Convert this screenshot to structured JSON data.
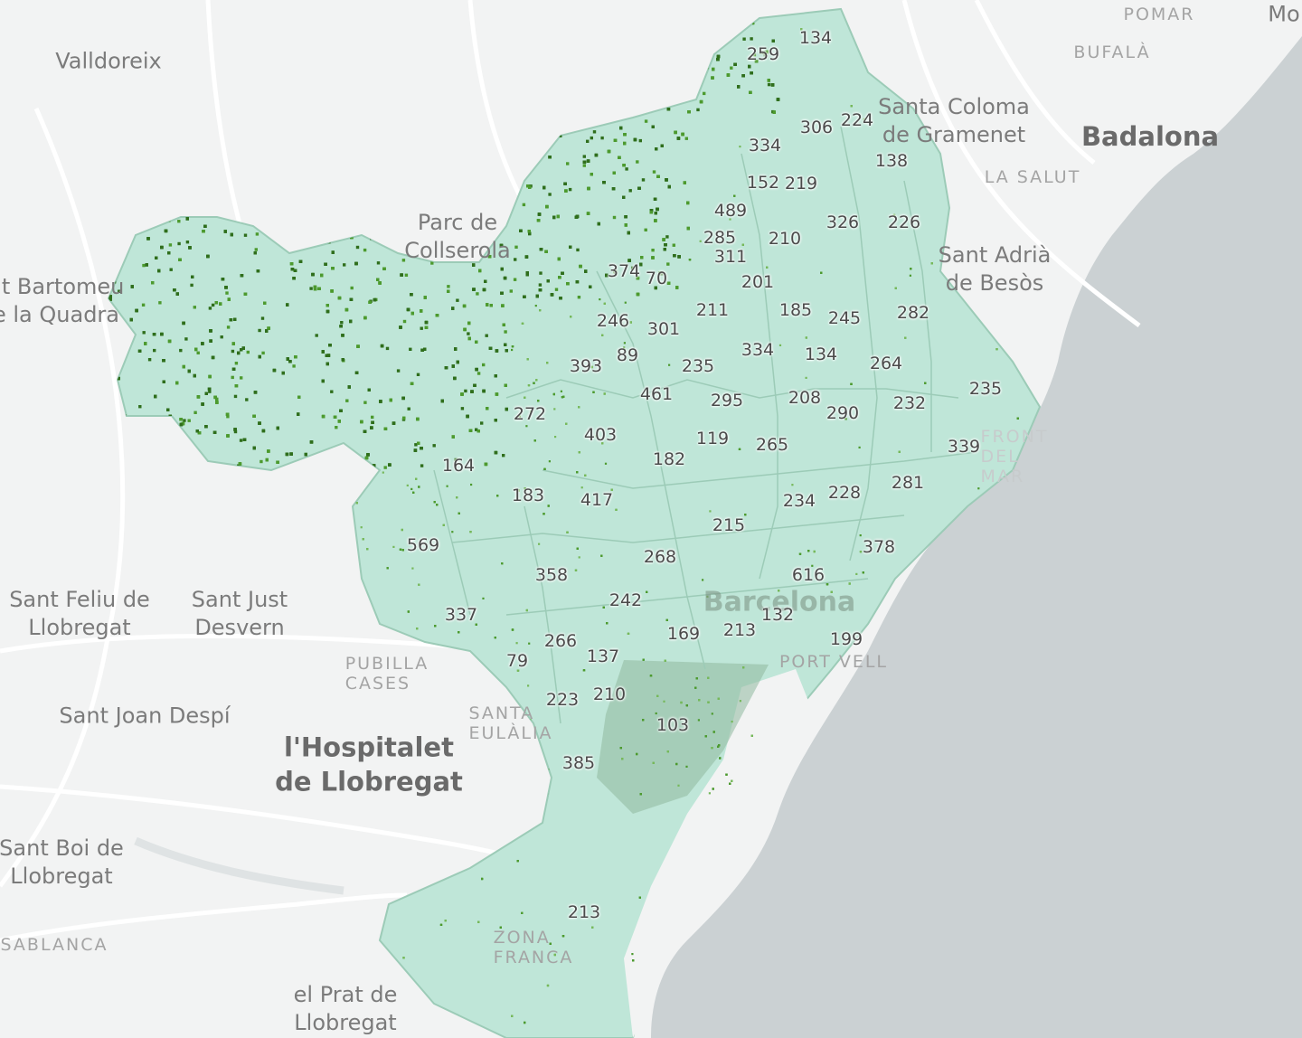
{
  "colors": {
    "land": "#f2f3f3",
    "sea": "#cbd1d3",
    "road": "#ffffff",
    "tree_dark": "#2f6e1c",
    "tree_mid": "#4c9a2e",
    "tree_light": "#76b85a",
    "district_fill": "#bfe6d8",
    "district_border": "#9ccbb7",
    "label": "#4a4a4a"
  },
  "place_labels": [
    {
      "id": "pomar",
      "text": "POMAR",
      "cls": "small"
    },
    {
      "id": "mo",
      "text": "Mo",
      "cls": "town"
    },
    {
      "id": "bufala",
      "text": "BUFALÀ",
      "cls": "small"
    },
    {
      "id": "valldoreix",
      "text": "Valldoreix",
      "cls": "town"
    },
    {
      "id": "santa-coloma",
      "text": "Santa Coloma\nde Gramenet",
      "cls": "town"
    },
    {
      "id": "badalona",
      "text": "Badalona",
      "cls": "city"
    },
    {
      "id": "la-salut",
      "text": "LA SALUT",
      "cls": "small"
    },
    {
      "id": "parc-collserola",
      "text": "Parc de\nCollserola",
      "cls": "town"
    },
    {
      "id": "sant-adria",
      "text": "Sant Adrià\nde Besòs",
      "cls": "town"
    },
    {
      "id": "sant-bartomeu",
      "text": "nt Bartomeu\ne la Quadra",
      "cls": "town"
    },
    {
      "id": "front-del-mar",
      "text": "FRONT\nDEL\nMAR",
      "cls": "small on-sea"
    },
    {
      "id": "sant-feliu",
      "text": "Sant Feliu de\nLlobregat",
      "cls": "town"
    },
    {
      "id": "sant-just",
      "text": "Sant Just\nDesvern",
      "cls": "town"
    },
    {
      "id": "barcelona",
      "text": "Barcelona",
      "cls": "major"
    },
    {
      "id": "pubilla-cases",
      "text": "PUBILLA\nCASES",
      "cls": "small"
    },
    {
      "id": "port-vell",
      "text": "PORT VELL",
      "cls": "small"
    },
    {
      "id": "santa-eulalia",
      "text": "SANTA\nEULÀLIA",
      "cls": "small"
    },
    {
      "id": "sant-joan",
      "text": "Sant Joan Despí",
      "cls": "town"
    },
    {
      "id": "hospitalet",
      "text": "l'Hospitalet\nde Llobregat",
      "cls": "city"
    },
    {
      "id": "sant-boi",
      "text": "Sant Boi de\nLlobregat",
      "cls": "town"
    },
    {
      "id": "zona-franca",
      "text": "ZONA\nFRANCA",
      "cls": "small"
    },
    {
      "id": "casablanca",
      "text": "SABLANCA",
      "cls": "small"
    },
    {
      "id": "el-prat",
      "text": "el Prat de\nLlobregat",
      "cls": "town"
    }
  ],
  "district_values": [
    "134",
    "259",
    "224",
    "306",
    "334",
    "138",
    "152",
    "219",
    "489",
    "326",
    "226",
    "285",
    "210",
    "311",
    "374",
    "70",
    "201",
    "282",
    "246",
    "301",
    "211",
    "185",
    "245",
    "393",
    "89",
    "235",
    "334",
    "134",
    "264",
    "461",
    "295",
    "208",
    "290",
    "232",
    "235",
    "272",
    "403",
    "119",
    "265",
    "339",
    "182",
    "164",
    "183",
    "417",
    "234",
    "228",
    "281",
    "215",
    "569",
    "268",
    "378",
    "358",
    "616",
    "242",
    "132",
    "337",
    "169",
    "213",
    "199",
    "266",
    "79",
    "137",
    "223",
    "210",
    "103",
    "385",
    "213"
  ]
}
